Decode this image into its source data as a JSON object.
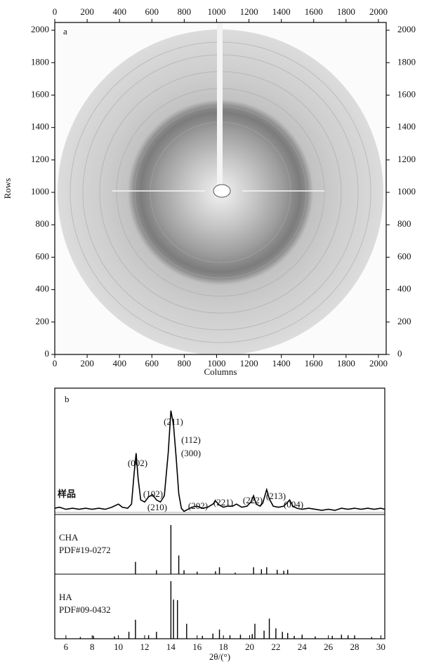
{
  "chart_data": [
    {
      "type": "image",
      "panel": "a",
      "xlabel": "Columns",
      "ylabel": "Rows",
      "xlim": [
        0,
        2048
      ],
      "ylim": [
        0,
        2048
      ],
      "xticks": [
        0,
        200,
        400,
        600,
        800,
        1000,
        1200,
        1400,
        1600,
        1800,
        2000
      ],
      "yticks": [
        0,
        200,
        400,
        600,
        800,
        1000,
        1200,
        1400,
        1600,
        1800,
        2000
      ]
    },
    {
      "type": "line",
      "panel": "b",
      "xlabel": "2θ/(°)",
      "xlim": [
        5.15,
        30.3
      ],
      "xticks": [
        6,
        8,
        10,
        12,
        14,
        16,
        18,
        20,
        22,
        24,
        26,
        28,
        30
      ],
      "grid": false,
      "annotations": [
        "(002)",
        "(102)",
        "(210)",
        "(211)",
        "(112)",
        "(300)",
        "(202)",
        "(221)",
        "(222)",
        "(213)",
        "(004)"
      ],
      "series": [
        {
          "name": "样品",
          "style": "curve",
          "color": "#000000",
          "x": [
            5.15,
            5.5,
            6,
            6.5,
            7,
            7.5,
            8,
            8.5,
            9,
            9.5,
            10,
            10.3,
            10.7,
            11.0,
            11.2,
            11.35,
            11.5,
            11.7,
            12.0,
            12.3,
            12.6,
            12.9,
            13.2,
            13.5,
            13.8,
            14.0,
            14.2,
            14.4,
            14.6,
            14.8,
            15.0,
            15.3,
            15.6,
            16.0,
            16.4,
            16.8,
            17.2,
            17.4,
            17.7,
            18.0,
            18.3,
            18.7,
            19.0,
            19.4,
            19.8,
            20.1,
            20.3,
            20.5,
            20.8,
            21.0,
            21.3,
            21.5,
            21.8,
            22.2,
            22.6,
            22.9,
            23.05,
            23.3,
            23.6,
            24.0,
            24.5,
            25.0,
            25.5,
            26,
            26.5,
            27,
            27.5,
            28,
            28.5,
            29,
            29.5,
            30,
            30.3
          ],
          "values": [
            6,
            7,
            5,
            6,
            5,
            6,
            5,
            6,
            5,
            7,
            10,
            7,
            6,
            10,
            40,
            59,
            35,
            14,
            12,
            17,
            19,
            14,
            12,
            18,
            60,
            100,
            86,
            55,
            20,
            6,
            3,
            5,
            7,
            8,
            6,
            7,
            10,
            13,
            9,
            7,
            8,
            8,
            10,
            7,
            8,
            12,
            18,
            10,
            8,
            11,
            24,
            15,
            8,
            7,
            8,
            12,
            14,
            8,
            6,
            5,
            6,
            5,
            4,
            5,
            4,
            6,
            5,
            6,
            5,
            6,
            5,
            6,
            5
          ]
        },
        {
          "name": "CHA",
          "card": "PDF#19-0272",
          "style": "stick",
          "color": "#000000",
          "x": [
            11.3,
            12.9,
            14.0,
            14.6,
            15.0,
            16.0,
            17.4,
            17.7,
            18.9,
            20.3,
            20.9,
            21.3,
            22.1,
            22.6,
            22.9
          ],
          "values": [
            25,
            8,
            100,
            38,
            8,
            5,
            6,
            14,
            3,
            14,
            10,
            14,
            9,
            7,
            9
          ]
        },
        {
          "name": "HA",
          "card": "PDF#09-0432",
          "style": "stick",
          "color": "#000000",
          "x": [
            7.1,
            8.1,
            9.7,
            10.8,
            11.3,
            12.3,
            12.9,
            14.0,
            14.2,
            14.5,
            15.2,
            16.4,
            17.2,
            17.7,
            18.5,
            19.3,
            20.2,
            20.4,
            21.1,
            21.5,
            22.0,
            22.5,
            22.9,
            23.4,
            24.0,
            25.0,
            26.3,
            27.0,
            27.5,
            28.0,
            29.3
          ],
          "values": [
            3,
            5,
            4,
            12,
            33,
            6,
            12,
            100,
            68,
            67,
            26,
            5,
            9,
            16,
            6,
            7,
            8,
            26,
            14,
            35,
            18,
            12,
            10,
            5,
            7,
            4,
            5,
            7,
            6,
            5,
            3
          ]
        }
      ]
    }
  ]
}
